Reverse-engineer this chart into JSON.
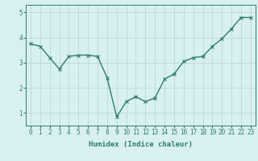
{
  "xlabel": "Humidex (Indice chaleur)",
  "ylabel": "",
  "x": [
    0,
    1,
    2,
    3,
    4,
    5,
    6,
    7,
    8,
    9,
    10,
    11,
    12,
    13,
    14,
    15,
    16,
    17,
    18,
    19,
    20,
    21,
    22,
    23
  ],
  "y": [
    3.75,
    3.65,
    3.2,
    2.75,
    3.25,
    3.3,
    3.3,
    3.25,
    2.4,
    0.85,
    1.45,
    1.65,
    1.45,
    1.6,
    2.35,
    2.55,
    3.05,
    3.2,
    3.25,
    3.65,
    3.95,
    4.35,
    4.8,
    4.8
  ],
  "line_color": "#2e7d6e",
  "marker": "x",
  "marker_size": 3,
  "bg_color": "#d8f0f0",
  "grid_color": "#c0d8d8",
  "xlim": [
    -0.5,
    23.5
  ],
  "ylim": [
    0.5,
    5.3
  ],
  "yticks": [
    1,
    2,
    3,
    4,
    5
  ],
  "xticks": [
    0,
    1,
    2,
    3,
    4,
    5,
    6,
    7,
    8,
    9,
    10,
    11,
    12,
    13,
    14,
    15,
    16,
    17,
    18,
    19,
    20,
    21,
    22,
    23
  ],
  "xtick_labels": [
    "0",
    "1",
    "2",
    "3",
    "4",
    "5",
    "6",
    "7",
    "8",
    "9",
    "10",
    "11",
    "12",
    "13",
    "14",
    "15",
    "16",
    "17",
    "18",
    "19",
    "20",
    "21",
    "22",
    "23"
  ],
  "tick_fontsize": 5.5,
  "label_fontsize": 6.5,
  "line_width": 1.0
}
